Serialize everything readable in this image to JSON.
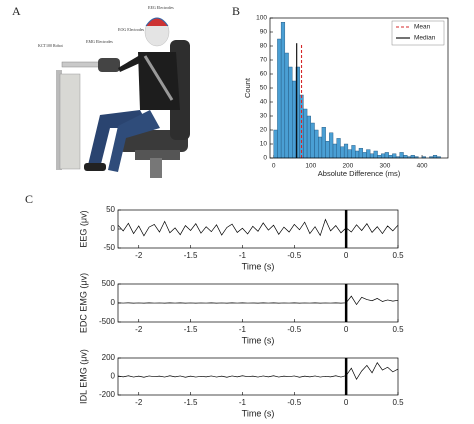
{
  "panels": [
    "A",
    "B",
    "C"
  ],
  "photo_labels": [
    "EEG Electrodes",
    "EOG Electrodes",
    "EMG Electrodes",
    "KCT100 Robot"
  ],
  "chart_data": [
    {
      "type": "histogram",
      "xlabel": "Absolute Difference (ms)",
      "ylabel": "Count",
      "color": "#4a9fd4",
      "bins": [
        0,
        10,
        20,
        30,
        40,
        50,
        60,
        70,
        80,
        90,
        100,
        110,
        120,
        130,
        140,
        150,
        160,
        170,
        180,
        190,
        200,
        210,
        220,
        230,
        240,
        250,
        260,
        270,
        280,
        290,
        300,
        310,
        320,
        330,
        340,
        350,
        360,
        370,
        380,
        390,
        400,
        410,
        420,
        430,
        440,
        450,
        460
      ],
      "values": [
        20,
        85,
        97,
        75,
        65,
        55,
        65,
        45,
        35,
        30,
        25,
        20,
        15,
        22,
        12,
        18,
        10,
        14,
        8,
        10,
        6,
        9,
        5,
        7,
        4,
        6,
        3,
        5,
        2,
        3,
        4,
        2,
        3,
        1,
        4,
        2,
        1,
        2,
        1,
        0,
        1,
        0,
        1,
        2,
        1,
        0
      ],
      "xlim": [
        -10,
        470
      ],
      "xticks": [
        0,
        100,
        200,
        300,
        400
      ],
      "ylim": [
        0,
        100
      ],
      "yticks": [
        0,
        10,
        20,
        30,
        40,
        50,
        60,
        70,
        80,
        90,
        100
      ],
      "reference_lines": [
        {
          "name": "Mean",
          "value": 75,
          "color": "#d62728",
          "dashed": true
        },
        {
          "name": "Median",
          "value": 62,
          "color": "#000000",
          "dashed": false
        }
      ],
      "legend": "upper right"
    },
    {
      "type": "line",
      "ylabel": "EEG (μv)",
      "xlabel": "Time (s)",
      "color": "#000000",
      "event_lines": [
        0
      ],
      "x": [
        -2.2,
        -2.15,
        -2.1,
        -2.05,
        -2,
        -1.95,
        -1.9,
        -1.85,
        -1.8,
        -1.75,
        -1.7,
        -1.65,
        -1.6,
        -1.55,
        -1.5,
        -1.45,
        -1.4,
        -1.35,
        -1.3,
        -1.25,
        -1.2,
        -1.15,
        -1.1,
        -1.05,
        -1,
        -0.95,
        -0.9,
        -0.85,
        -0.8,
        -0.75,
        -0.7,
        -0.65,
        -0.6,
        -0.55,
        -0.5,
        -0.45,
        -0.4,
        -0.35,
        -0.3,
        -0.25,
        -0.2,
        -0.15,
        -0.1,
        -0.05,
        0,
        0.05,
        0.1,
        0.15,
        0.2,
        0.25,
        0.3,
        0.35,
        0.4,
        0.45,
        0.5
      ],
      "values": [
        10,
        -5,
        15,
        -12,
        8,
        -18,
        5,
        12,
        -8,
        20,
        -10,
        3,
        -15,
        9,
        -4,
        14,
        -11,
        6,
        -7,
        11,
        -16,
        4,
        13,
        -9,
        2,
        -13,
        7,
        -6,
        16,
        -3,
        10,
        -14,
        5,
        -8,
        12,
        -2,
        18,
        -12,
        6,
        -17,
        25,
        -5,
        9,
        -10,
        3,
        -8,
        11,
        -4,
        14,
        -9,
        6,
        -12,
        8,
        -5,
        10
      ],
      "xlim": [
        -2.2,
        0.5
      ],
      "xticks": [
        -2,
        -1.5,
        -1,
        -0.5,
        0,
        0.5
      ],
      "ylim": [
        -50,
        50
      ],
      "yticks": [
        -50,
        0,
        50
      ]
    },
    {
      "type": "line",
      "ylabel": "EDC EMG (μv)",
      "xlabel": "Time (s)",
      "color": "#000000",
      "event_lines": [
        0
      ],
      "x": [
        -2.2,
        -2.15,
        -2.1,
        -2.05,
        -2,
        -1.95,
        -1.9,
        -1.85,
        -1.8,
        -1.75,
        -1.7,
        -1.65,
        -1.6,
        -1.55,
        -1.5,
        -1.45,
        -1.4,
        -1.35,
        -1.3,
        -1.25,
        -1.2,
        -1.15,
        -1.1,
        -1.05,
        -1,
        -0.95,
        -0.9,
        -0.85,
        -0.8,
        -0.75,
        -0.7,
        -0.65,
        -0.6,
        -0.55,
        -0.5,
        -0.45,
        -0.4,
        -0.35,
        -0.3,
        -0.25,
        -0.2,
        -0.15,
        -0.1,
        -0.05,
        0,
        0.05,
        0.1,
        0.15,
        0.2,
        0.25,
        0.3,
        0.35,
        0.4,
        0.45,
        0.5
      ],
      "values": [
        3,
        -2,
        4,
        -3,
        2,
        -4,
        3,
        -1,
        2,
        -3,
        4,
        -2,
        3,
        -4,
        2,
        -3,
        1,
        -2,
        3,
        -3,
        2,
        -4,
        3,
        -2,
        4,
        -1,
        2,
        -3,
        3,
        -2,
        4,
        -3,
        2,
        -1,
        3,
        -4,
        2,
        -2,
        3,
        -3,
        1,
        -2,
        4,
        -3,
        5,
        180,
        -40,
        150,
        90,
        60,
        120,
        40,
        80,
        50,
        70
      ],
      "xlim": [
        -2.2,
        0.5
      ],
      "xticks": [
        -2,
        -1.5,
        -1,
        -0.5,
        0,
        0.5
      ],
      "ylim": [
        -500,
        500
      ],
      "yticks": [
        -500,
        0,
        500
      ]
    },
    {
      "type": "line",
      "ylabel": "IDL EMG (μv)",
      "xlabel": "Time (s)",
      "color": "#000000",
      "event_lines": [
        0
      ],
      "x": [
        -2.2,
        -2.15,
        -2.1,
        -2.05,
        -2,
        -1.95,
        -1.9,
        -1.85,
        -1.8,
        -1.75,
        -1.7,
        -1.65,
        -1.6,
        -1.55,
        -1.5,
        -1.45,
        -1.4,
        -1.35,
        -1.3,
        -1.25,
        -1.2,
        -1.15,
        -1.1,
        -1.05,
        -1,
        -0.95,
        -0.9,
        -0.85,
        -0.8,
        -0.75,
        -0.7,
        -0.65,
        -0.6,
        -0.55,
        -0.5,
        -0.45,
        -0.4,
        -0.35,
        -0.3,
        -0.25,
        -0.2,
        -0.15,
        -0.1,
        -0.05,
        0,
        0.05,
        0.1,
        0.15,
        0.2,
        0.25,
        0.3,
        0.35,
        0.4,
        0.45,
        0.5
      ],
      "values": [
        6,
        -4,
        8,
        -6,
        4,
        -8,
        6,
        -2,
        4,
        -6,
        8,
        -4,
        6,
        -8,
        4,
        -6,
        2,
        -4,
        6,
        -6,
        4,
        -8,
        6,
        -4,
        8,
        -2,
        4,
        -6,
        6,
        -4,
        8,
        -6,
        4,
        -2,
        6,
        -8,
        4,
        -4,
        6,
        -6,
        2,
        -4,
        8,
        -6,
        10,
        90,
        -30,
        60,
        120,
        40,
        150,
        70,
        100,
        50,
        80
      ],
      "xlim": [
        -2.2,
        0.5
      ],
      "xticks": [
        -2,
        -1.5,
        -1,
        -0.5,
        0,
        0.5
      ],
      "ylim": [
        -200,
        200
      ],
      "yticks": [
        -200,
        0,
        200
      ]
    }
  ]
}
